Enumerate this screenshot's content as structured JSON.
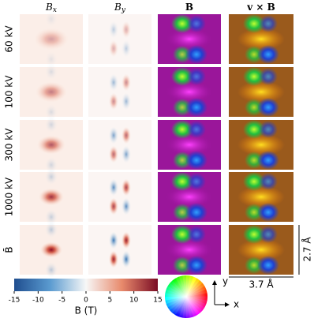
{
  "columns": [
    {
      "symbol": "B",
      "subscript": "x"
    },
    {
      "symbol": "B",
      "subscript": "y"
    },
    {
      "symbol": "B"
    },
    {
      "symbol": "v × B"
    }
  ],
  "rows": [
    "60 kV",
    "100 kV",
    "300 kV",
    "1000 kV",
    "B̄"
  ],
  "colorbar": {
    "label": "B (T)",
    "lim": [
      -15,
      15
    ],
    "ticks": [
      -15,
      -10,
      -5,
      0,
      5,
      10,
      15
    ]
  },
  "axes": {
    "y": "y",
    "x": "x"
  },
  "scale": {
    "width": "3.7 Å",
    "height": "2.7 Å"
  }
}
